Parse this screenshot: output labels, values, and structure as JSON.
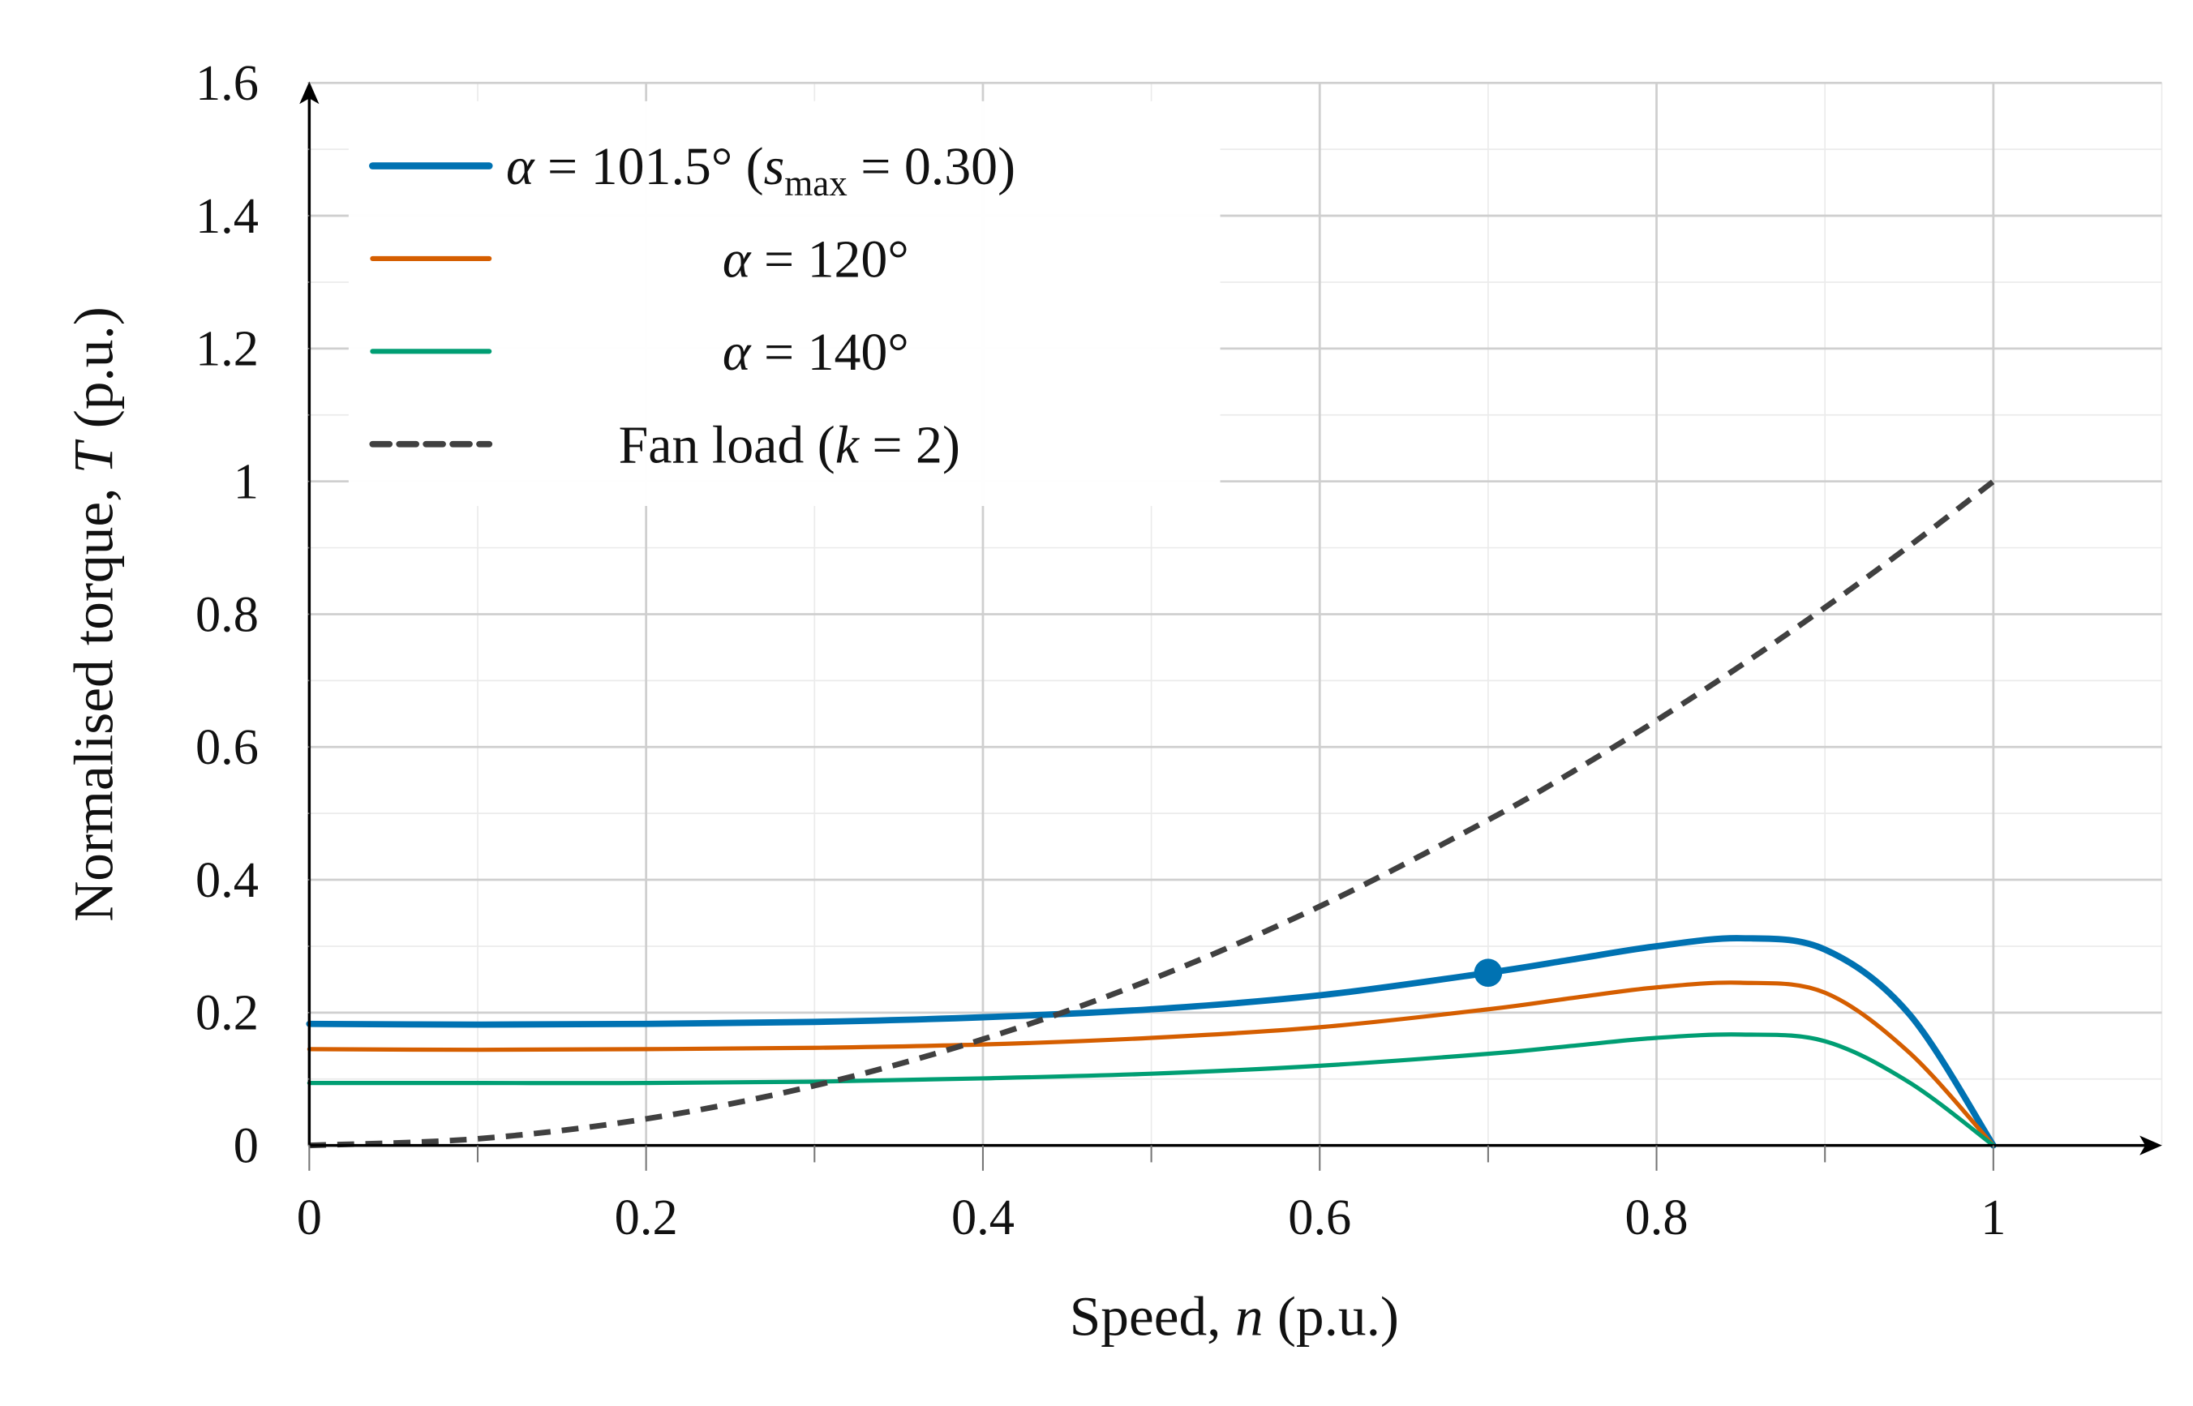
{
  "chart_data": {
    "type": "line",
    "xlabel": {
      "pre": "Speed, ",
      "var": "n",
      "post": " (p.u.)"
    },
    "ylabel": {
      "pre": "Normalised torque, ",
      "var": "T",
      "post": " (p.u.)"
    },
    "xlim": [
      0,
      1.1
    ],
    "ylim": [
      0,
      1.6
    ],
    "xticks": [
      0,
      0.2,
      0.4,
      0.6,
      0.8,
      1
    ],
    "xtick_labels": [
      "0",
      "0.2",
      "0.4",
      "0.6",
      "0.8",
      "1"
    ],
    "yticks": [
      0,
      0.2,
      0.4,
      0.6,
      0.8,
      1,
      1.2,
      1.4,
      1.6
    ],
    "ytick_labels": [
      "0",
      "0.2",
      "0.4",
      "0.6",
      "0.8",
      "1",
      "1.2",
      "1.4",
      "1.6"
    ],
    "grid": {
      "major": true,
      "minor": true
    },
    "legend_position": "top-left",
    "x": [
      0,
      0.1,
      0.2,
      0.3,
      0.4,
      0.5,
      0.6,
      0.7,
      0.75,
      0.8,
      0.85,
      0.9,
      0.95,
      1
    ],
    "series": [
      {
        "label": {
          "a": "α",
          "b": " = 101.5° (",
          "c": "s",
          "d": "max",
          "e": " = 0.30)"
        },
        "color": "#0072B2",
        "style": "solid-thick",
        "values": [
          0.183,
          0.182,
          0.183,
          0.186,
          0.193,
          0.205,
          0.226,
          0.26,
          0.28,
          0.3,
          0.312,
          0.295,
          0.198,
          0
        ]
      },
      {
        "label": {
          "a": "α",
          "b": " = 120°"
        },
        "color": "#D55E00",
        "style": "solid",
        "values": [
          0.145,
          0.144,
          0.145,
          0.147,
          0.152,
          0.162,
          0.178,
          0.205,
          0.222,
          0.238,
          0.245,
          0.23,
          0.14,
          0
        ]
      },
      {
        "label": {
          "a": "α",
          "b": " = 140°"
        },
        "color": "#009E73",
        "style": "solid",
        "values": [
          0.094,
          0.094,
          0.094,
          0.096,
          0.101,
          0.108,
          0.12,
          0.138,
          0.15,
          0.162,
          0.167,
          0.157,
          0.095,
          0
        ]
      },
      {
        "label": {
          "a": "Fan load (",
          "b": "k",
          "c": " = 2)"
        },
        "color": "#404040",
        "style": "dashed",
        "values": [
          0,
          0.01,
          0.04,
          0.09,
          0.16,
          0.25,
          0.36,
          0.49,
          0.5625,
          0.64,
          0.7225,
          0.81,
          0.9025,
          1
        ]
      }
    ],
    "marker": {
      "x": 0.7,
      "y": 0.26,
      "color": "#0072B2"
    }
  }
}
